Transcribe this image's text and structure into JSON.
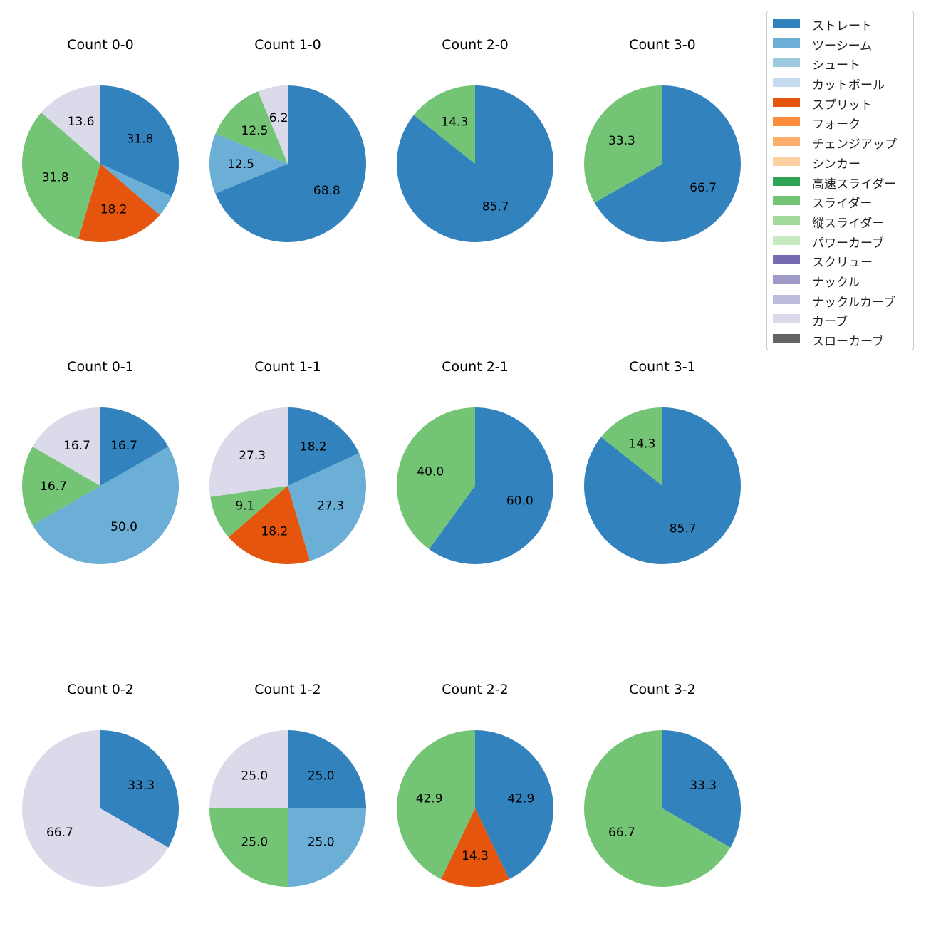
{
  "chart_data": {
    "type": "pie",
    "colors": {
      "ストレート": "#3182bd",
      "ツーシーム": "#6baed6",
      "シュート": "#9ecae1",
      "カットボール": "#c6dbef",
      "スプリット": "#e6550d",
      "フォーク": "#fd8d3c",
      "チェンジアップ": "#fdae6b",
      "シンカー": "#fdd0a2",
      "高速スライダー": "#31a354",
      "スライダー": "#74c476",
      "縦スライダー": "#a1d99b",
      "パワーカーブ": "#c7e9c0",
      "スクリュー": "#756bb1",
      "ナックル": "#9e9ac8",
      "ナックルカーブ": "#bcbddc",
      "カーブ": "#dadaeb",
      "スローカーブ": "#636363"
    },
    "legend": [
      "ストレート",
      "ツーシーム",
      "シュート",
      "カットボール",
      "スプリット",
      "フォーク",
      "チェンジアップ",
      "シンカー",
      "高速スライダー",
      "スライダー",
      "縦スライダー",
      "パワーカーブ",
      "スクリュー",
      "ナックル",
      "ナックルカーブ",
      "カーブ",
      "スローカーブ"
    ],
    "legend_position": "top-right",
    "pies": [
      {
        "title": "Count 0-0",
        "slices": [
          {
            "label": "ストレート",
            "value": 31.8
          },
          {
            "label": "ツーシーム",
            "value": 4.5
          },
          {
            "label": "スプリット",
            "value": 18.2
          },
          {
            "label": "スライダー",
            "value": 31.8
          },
          {
            "label": "カーブ",
            "value": 13.6
          }
        ]
      },
      {
        "title": "Count 1-0",
        "slices": [
          {
            "label": "ストレート",
            "value": 68.8
          },
          {
            "label": "ツーシーム",
            "value": 12.5
          },
          {
            "label": "スライダー",
            "value": 12.5
          },
          {
            "label": "カーブ",
            "value": 6.2
          }
        ]
      },
      {
        "title": "Count 2-0",
        "slices": [
          {
            "label": "ストレート",
            "value": 85.7
          },
          {
            "label": "スライダー",
            "value": 14.3
          }
        ]
      },
      {
        "title": "Count 3-0",
        "slices": [
          {
            "label": "ストレート",
            "value": 66.7
          },
          {
            "label": "スライダー",
            "value": 33.3
          }
        ]
      },
      {
        "title": "Count 0-1",
        "slices": [
          {
            "label": "ストレート",
            "value": 16.7
          },
          {
            "label": "ツーシーム",
            "value": 50.0
          },
          {
            "label": "スライダー",
            "value": 16.7
          },
          {
            "label": "カーブ",
            "value": 16.7
          }
        ]
      },
      {
        "title": "Count 1-1",
        "slices": [
          {
            "label": "ストレート",
            "value": 18.2
          },
          {
            "label": "ツーシーム",
            "value": 27.3
          },
          {
            "label": "スプリット",
            "value": 18.2
          },
          {
            "label": "スライダー",
            "value": 9.1
          },
          {
            "label": "カーブ",
            "value": 27.3
          }
        ]
      },
      {
        "title": "Count 2-1",
        "slices": [
          {
            "label": "ストレート",
            "value": 60.0
          },
          {
            "label": "スライダー",
            "value": 40.0
          }
        ]
      },
      {
        "title": "Count 3-1",
        "slices": [
          {
            "label": "ストレート",
            "value": 85.7
          },
          {
            "label": "スライダー",
            "value": 14.3
          }
        ]
      },
      {
        "title": "Count 0-2",
        "slices": [
          {
            "label": "ストレート",
            "value": 33.3
          },
          {
            "label": "カーブ",
            "value": 66.7
          }
        ]
      },
      {
        "title": "Count 1-2",
        "slices": [
          {
            "label": "ストレート",
            "value": 25.0
          },
          {
            "label": "ツーシーム",
            "value": 25.0
          },
          {
            "label": "スライダー",
            "value": 25.0
          },
          {
            "label": "カーブ",
            "value": 25.0
          }
        ]
      },
      {
        "title": "Count 2-2",
        "slices": [
          {
            "label": "ストレート",
            "value": 42.9
          },
          {
            "label": "スプリット",
            "value": 14.3
          },
          {
            "label": "スライダー",
            "value": 42.9
          }
        ]
      },
      {
        "title": "Count 3-2",
        "slices": [
          {
            "label": "ストレート",
            "value": 33.3
          },
          {
            "label": "スライダー",
            "value": 66.7
          }
        ]
      }
    ],
    "label_threshold": 5
  }
}
